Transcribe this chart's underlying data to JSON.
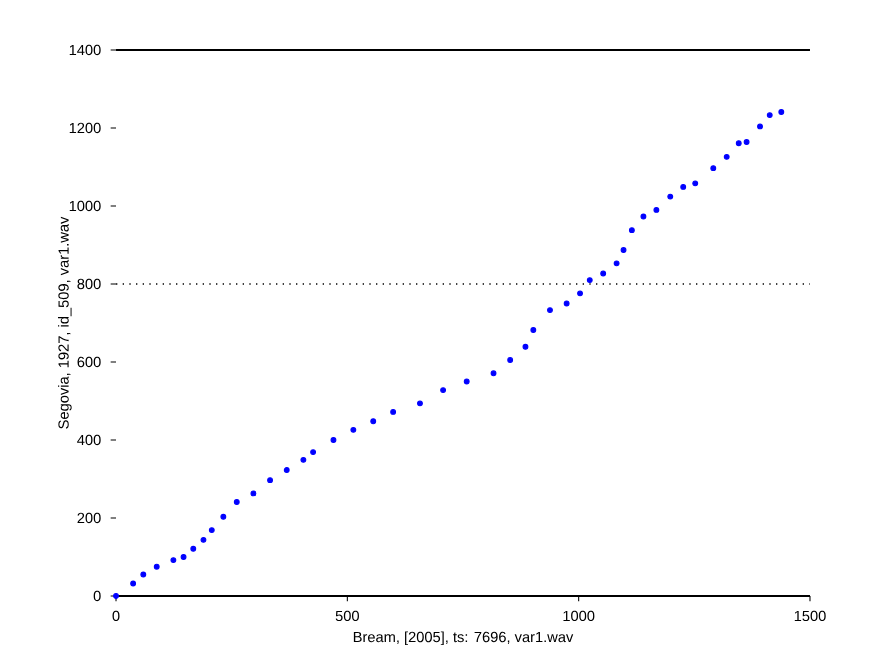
{
  "chart_data": {
    "type": "scatter",
    "xlabel": "Bream, [2005], ts: 7696, var1.wav",
    "ylabel": "Segovia, 1927, id_509, var1.wav",
    "x": [
      0,
      37,
      59,
      88,
      124,
      146,
      167,
      189,
      207,
      232,
      261,
      297,
      333,
      369,
      405,
      426,
      470,
      513,
      556,
      599,
      657,
      707,
      758,
      816,
      852,
      885,
      902,
      938,
      974,
      1003,
      1024,
      1053,
      1082,
      1097,
      1115,
      1140,
      1168,
      1198,
      1226,
      1252,
      1291,
      1320,
      1346,
      1363,
      1392,
      1413,
      1438
    ],
    "series": [
      {
        "color": "#0000ff",
        "values": [
          0,
          32,
          55,
          75,
          92,
          100,
          121,
          144,
          169,
          203,
          241,
          263,
          297,
          323,
          349,
          369,
          400,
          426,
          448,
          472,
          494,
          528,
          550,
          571,
          605,
          639,
          682,
          733,
          750,
          776,
          810,
          827,
          853,
          887,
          938,
          973,
          990,
          1024,
          1049,
          1058,
          1097,
          1126,
          1161,
          1164,
          1204,
          1233,
          1241
        ]
      }
    ],
    "xlim": [
      0,
      1500
    ],
    "ylim": [
      0,
      1400
    ],
    "xticks": [
      0,
      500,
      1000,
      1500
    ],
    "yticks": [
      0,
      200,
      400,
      600,
      800,
      1000,
      1200,
      1400
    ],
    "ref_lines": [
      {
        "axis": "y",
        "value": 800,
        "line_style": "dotted",
        "color": "#000000"
      }
    ],
    "grid": false
  }
}
